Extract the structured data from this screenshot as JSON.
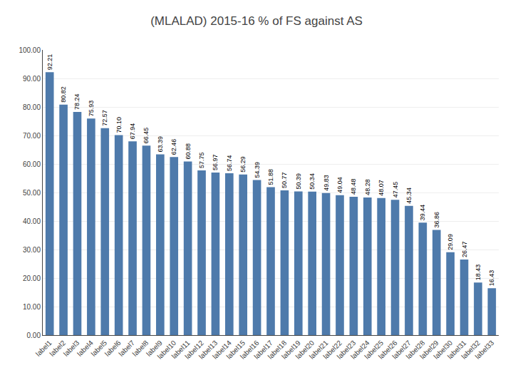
{
  "chart_data": {
    "type": "bar",
    "title": "(MLALAD) 2015-16 % of FS against AS",
    "categories": [
      "label1",
      "label2",
      "label3",
      "label4",
      "label5",
      "label6",
      "label7",
      "label8",
      "label9",
      "label10",
      "label11",
      "label12",
      "label13",
      "label14",
      "label15",
      "label16",
      "label17",
      "label18",
      "label19",
      "label20",
      "label21",
      "label22",
      "label23",
      "label24",
      "label25",
      "label26",
      "label27",
      "label28",
      "label29",
      "label30",
      "label31",
      "label32",
      "label33"
    ],
    "values": [
      92.21,
      80.82,
      78.24,
      75.93,
      72.57,
      70.1,
      67.94,
      66.45,
      63.39,
      62.46,
      60.88,
      57.75,
      56.97,
      56.74,
      56.29,
      54.39,
      51.88,
      50.77,
      50.39,
      50.34,
      49.83,
      49.04,
      48.48,
      48.28,
      48.07,
      47.45,
      45.34,
      39.44,
      36.86,
      29.09,
      26.47,
      18.43,
      16.43
    ],
    "value_labels": [
      "92.21",
      "80.82",
      "78.24",
      "75.93",
      "72.57",
      "70.10",
      "67.94",
      "66.45",
      "63.39",
      "62.46",
      "60.88",
      "57.75",
      "56.97",
      "56.74",
      "56.29",
      "54.39",
      "51.88",
      "50.77",
      "50.39",
      "50.34",
      "49.83",
      "49.04",
      "48.48",
      "48.28",
      "48.07",
      "47.45",
      "45.34",
      "39.44",
      "36.86",
      "29.09",
      "26.47",
      "18.43",
      "16.43"
    ],
    "color": "#4e7aab",
    "ylim": [
      0,
      100
    ],
    "yticks": [
      {
        "value": 0,
        "label": "0.00"
      },
      {
        "value": 10,
        "label": "10.00"
      },
      {
        "value": 20,
        "label": "20.00"
      },
      {
        "value": 30,
        "label": "30.00"
      },
      {
        "value": 40,
        "label": "40.00"
      },
      {
        "value": 50,
        "label": "50.00"
      },
      {
        "value": 60,
        "label": "60.00"
      },
      {
        "value": 70,
        "label": "70.00"
      },
      {
        "value": 80,
        "label": "80.00"
      },
      {
        "value": 90,
        "label": "90.00"
      },
      {
        "value": 100,
        "label": "100.00"
      }
    ],
    "grid": true,
    "data_labels": true
  }
}
